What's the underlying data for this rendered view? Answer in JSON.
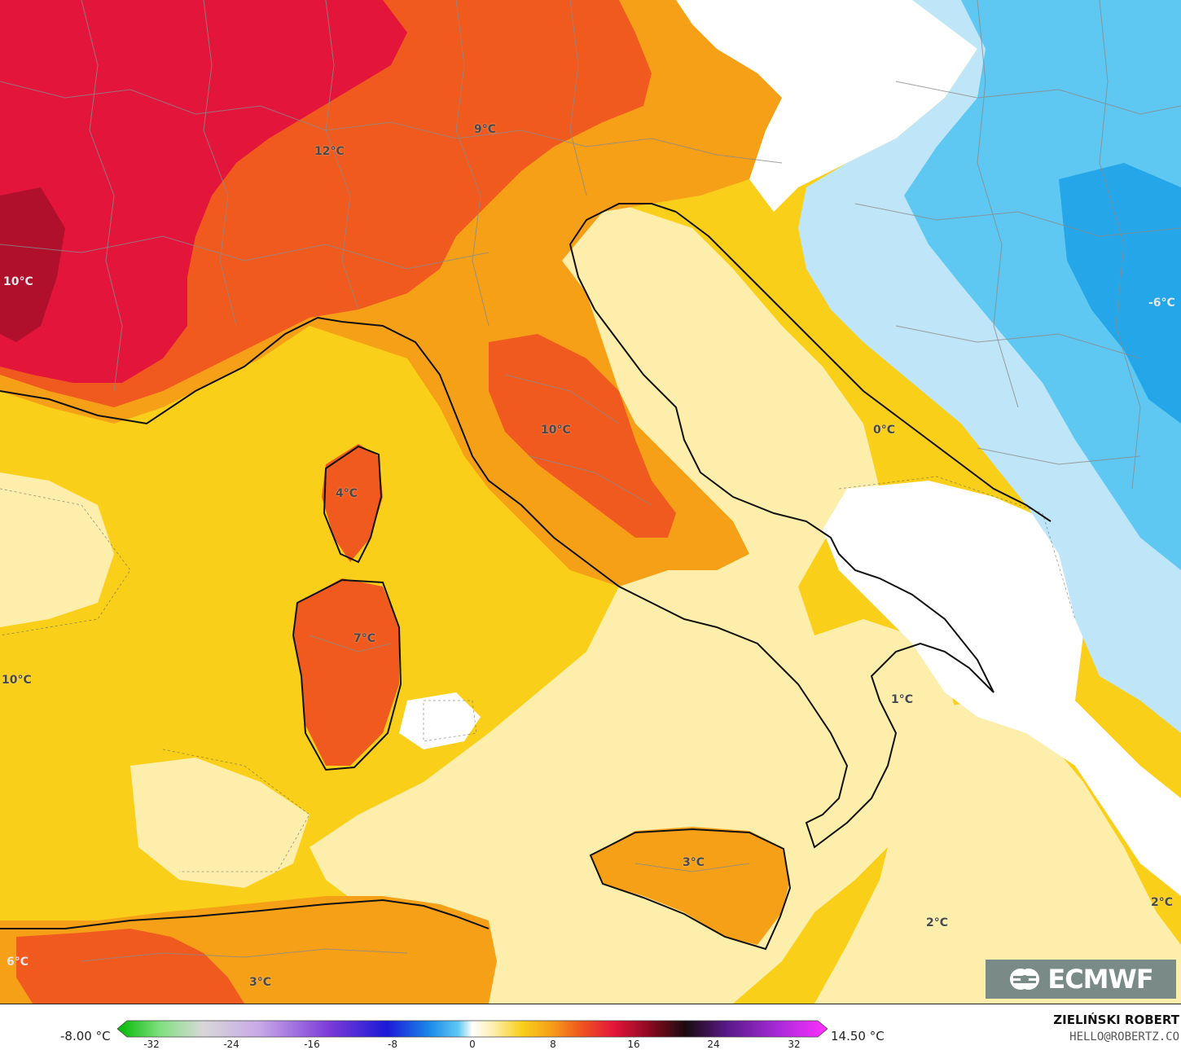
{
  "map": {
    "labels": [
      {
        "text": "12°C"
      },
      {
        "text": "9°C"
      },
      {
        "text": "10°C"
      },
      {
        "text": "10°C"
      },
      {
        "text": "4°C"
      },
      {
        "text": "7°C"
      },
      {
        "text": "10°C"
      },
      {
        "text": "0°C"
      },
      {
        "text": "-6°C"
      },
      {
        "text": "1°C"
      },
      {
        "text": "3°C"
      },
      {
        "text": "2°C"
      },
      {
        "text": "2°C"
      },
      {
        "text": "6°C"
      },
      {
        "text": "3°C"
      }
    ]
  },
  "logo": {
    "text": "ECMWF"
  },
  "legend": {
    "min_label": "-8.00 °C",
    "max_label": "14.50 °C",
    "ticks": [
      "-32",
      "-24",
      "-16",
      "-8",
      "0",
      "8",
      "16",
      "24",
      "32"
    ]
  },
  "credit": {
    "author": "ZIELIŃSKI ROBERT",
    "email": "HELLO@ROBERTZ.CO"
  },
  "colors": {
    "hot": "#e3153a",
    "warm": "#f05a1e",
    "mild": "#f6a018",
    "cool": "#f9cf1a",
    "pale": "#fdeeab",
    "cold": "#bfe6f8",
    "colder": "#5ec8f2"
  }
}
